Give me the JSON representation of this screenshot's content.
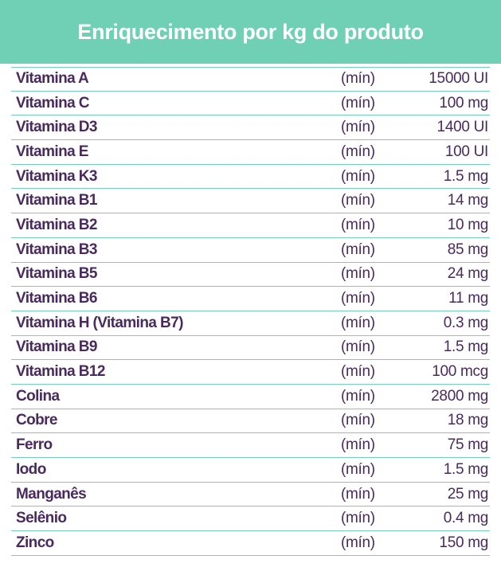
{
  "title": "Enriquecimento por kg do produto",
  "colors": {
    "header_bg": "#6fd0b5",
    "text": "#4a2a5e",
    "rule": "#74cfb6"
  },
  "rows": [
    {
      "nutrient": "Vitamina A",
      "qualifier": "(mín)",
      "amount": "15000 UI"
    },
    {
      "nutrient": "Vitamina C",
      "qualifier": "(mín)",
      "amount": "100 mg"
    },
    {
      "nutrient": "Vitamina D3",
      "qualifier": "(mín)",
      "amount": "1400 UI"
    },
    {
      "nutrient": "Vitamina E",
      "qualifier": "(mín)",
      "amount": "100 UI"
    },
    {
      "nutrient": "Vitamina K3",
      "qualifier": "(mín)",
      "amount": "1.5 mg"
    },
    {
      "nutrient": "Vitamina B1",
      "qualifier": "(mín)",
      "amount": "14 mg"
    },
    {
      "nutrient": "Vitamina B2",
      "qualifier": "(mín)",
      "amount": "10 mg"
    },
    {
      "nutrient": "Vitamina B3",
      "qualifier": "(mín)",
      "amount": "85 mg"
    },
    {
      "nutrient": "Vitamina B5",
      "qualifier": "(mín)",
      "amount": "24 mg"
    },
    {
      "nutrient": "Vitamina B6",
      "qualifier": "(mín)",
      "amount": "11 mg"
    },
    {
      "nutrient": "Vitamina H (Vitamina B7)",
      "qualifier": "(mín)",
      "amount": "0.3 mg"
    },
    {
      "nutrient": "Vitamina B9",
      "qualifier": "(mín)",
      "amount": "1.5 mg"
    },
    {
      "nutrient": "Vitamina B12",
      "qualifier": "(mín)",
      "amount": "100 mcg"
    },
    {
      "nutrient": "Colina",
      "qualifier": "(mín)",
      "amount": "2800 mg"
    },
    {
      "nutrient": "Cobre",
      "qualifier": "(mín)",
      "amount": "18 mg"
    },
    {
      "nutrient": "Ferro",
      "qualifier": "(mín)",
      "amount": "75 mg"
    },
    {
      "nutrient": "Iodo",
      "qualifier": "(mín)",
      "amount": "1.5 mg"
    },
    {
      "nutrient": "Manganês",
      "qualifier": "(mín)",
      "amount": "25 mg"
    },
    {
      "nutrient": "Selênio",
      "qualifier": "(mín)",
      "amount": "0.4 mg"
    },
    {
      "nutrient": "Zinco",
      "qualifier": "(mín)",
      "amount": "150 mg"
    }
  ]
}
